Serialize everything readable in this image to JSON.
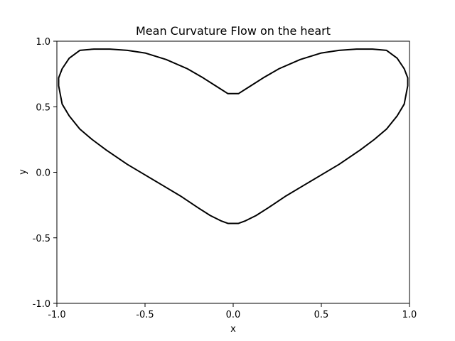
{
  "chart_data": {
    "type": "line",
    "title": "Mean Curvature Flow on the heart",
    "xlabel": "x",
    "ylabel": "y",
    "xlim": [
      -1.0,
      1.0
    ],
    "ylim": [
      -1.0,
      1.0
    ],
    "xticks": [
      -1.0,
      -0.5,
      0.0,
      0.5,
      1.0
    ],
    "xtick_labels": [
      "-1.0",
      "-0.5",
      "0.0",
      "0.5",
      "1.0"
    ],
    "yticks": [
      -1.0,
      -0.5,
      0.0,
      0.5,
      1.0
    ],
    "ytick_labels": [
      "-1.0",
      "-0.5",
      "0.0",
      "0.5",
      "1.0"
    ],
    "grid": false,
    "line_color": "#000000",
    "series": [
      {
        "closed": true,
        "x": [
          0.0,
          -0.03,
          -0.1,
          -0.17,
          -0.26,
          -0.38,
          -0.5,
          -0.6,
          -0.7,
          -0.79,
          -0.87,
          -0.93,
          -0.97,
          -0.99,
          -0.99,
          -0.97,
          -0.93,
          -0.87,
          -0.8,
          -0.72,
          -0.6,
          -0.5,
          -0.4,
          -0.3,
          -0.2,
          -0.13,
          -0.07,
          -0.03,
          0.0,
          0.03,
          0.07,
          0.13,
          0.2,
          0.3,
          0.4,
          0.5,
          0.6,
          0.72,
          0.8,
          0.87,
          0.93,
          0.97,
          0.99,
          0.99,
          0.97,
          0.93,
          0.87,
          0.79,
          0.7,
          0.6,
          0.5,
          0.38,
          0.26,
          0.17,
          0.1,
          0.03,
          0.0
        ],
        "y": [
          0.6,
          0.6,
          0.66,
          0.72,
          0.79,
          0.86,
          0.91,
          0.93,
          0.94,
          0.94,
          0.93,
          0.87,
          0.79,
          0.72,
          0.66,
          0.52,
          0.43,
          0.33,
          0.25,
          0.17,
          0.06,
          -0.02,
          -0.1,
          -0.18,
          -0.27,
          -0.33,
          -0.37,
          -0.39,
          -0.39,
          -0.39,
          -0.37,
          -0.33,
          -0.27,
          -0.18,
          -0.1,
          -0.02,
          0.06,
          0.17,
          0.25,
          0.33,
          0.43,
          0.52,
          0.66,
          0.72,
          0.79,
          0.87,
          0.93,
          0.94,
          0.94,
          0.93,
          0.91,
          0.86,
          0.79,
          0.72,
          0.66,
          0.6,
          0.6
        ]
      }
    ]
  }
}
